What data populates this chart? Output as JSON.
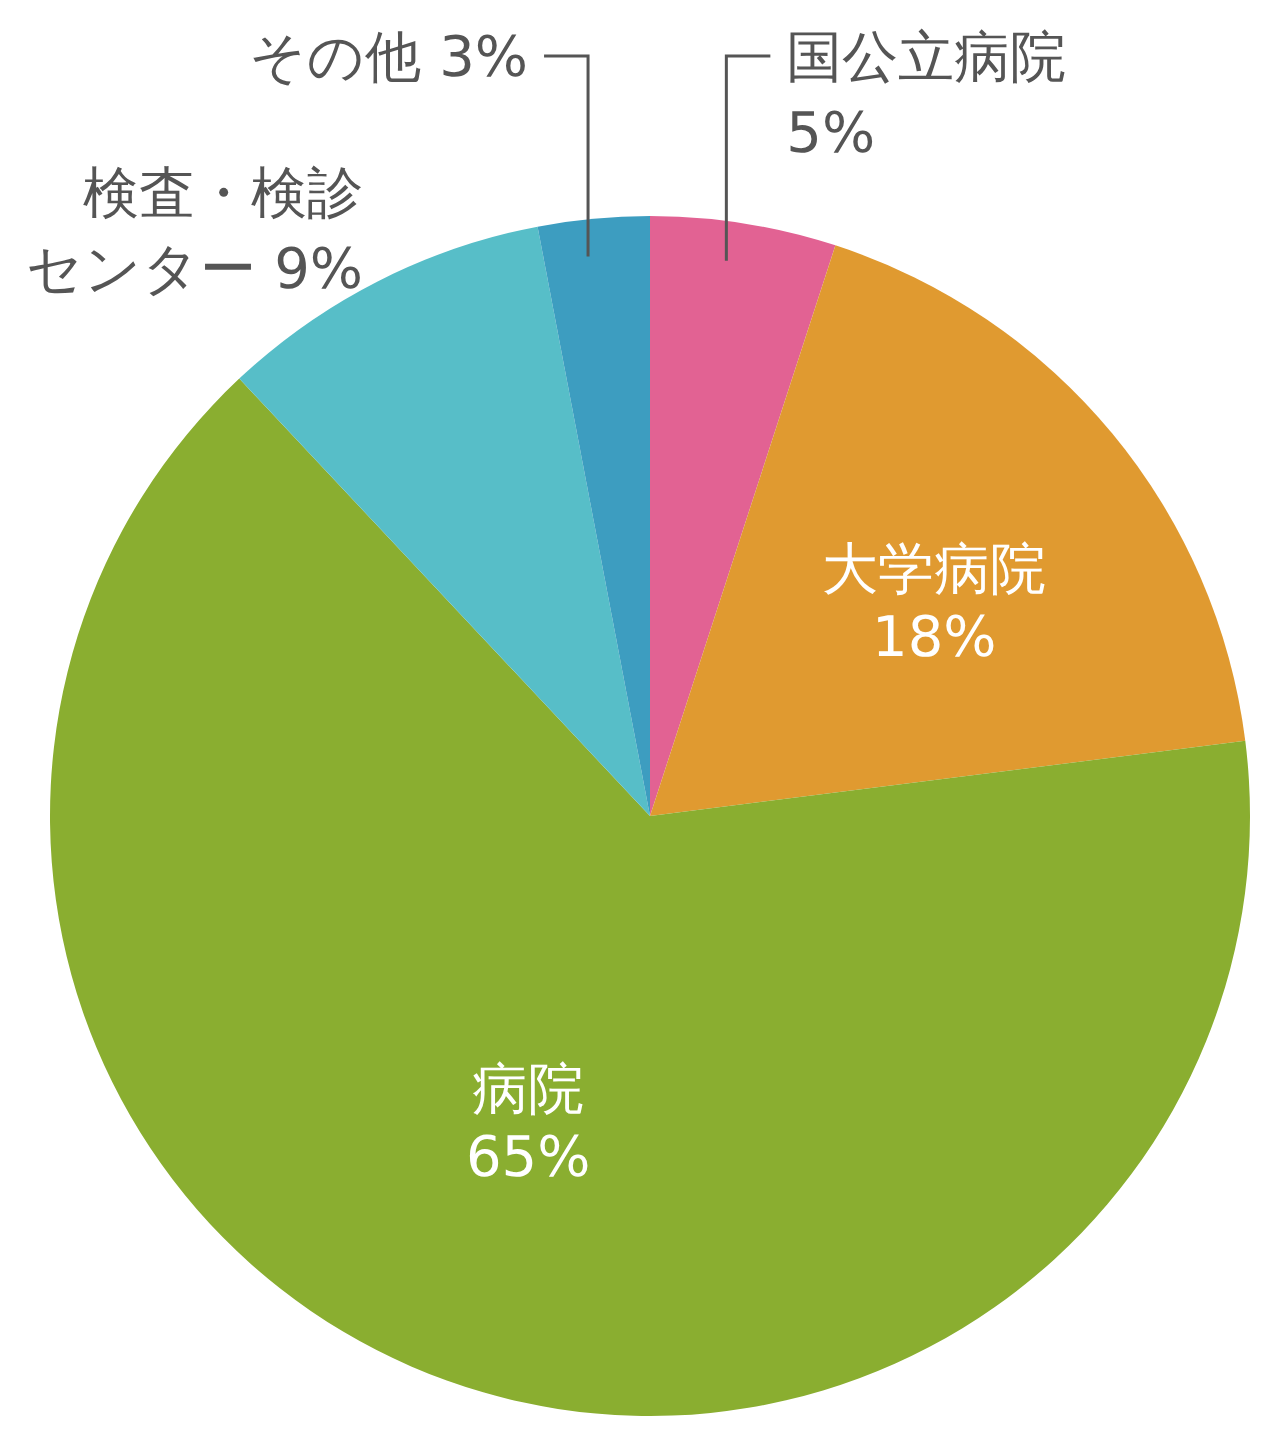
{
  "chart_data": {
    "type": "pie",
    "categories": [
      "国公立病院",
      "大学病院",
      "病院",
      "検査・検診センター",
      "その他"
    ],
    "values": [
      5,
      18,
      65,
      9,
      3
    ],
    "value_labels": [
      "5%",
      "18%",
      "65%",
      "9%",
      "3%"
    ],
    "colors": [
      "#e26293",
      "#e09a30",
      "#8aae30",
      "#57bec8",
      "#3d9dc0"
    ],
    "legend": false
  }
}
